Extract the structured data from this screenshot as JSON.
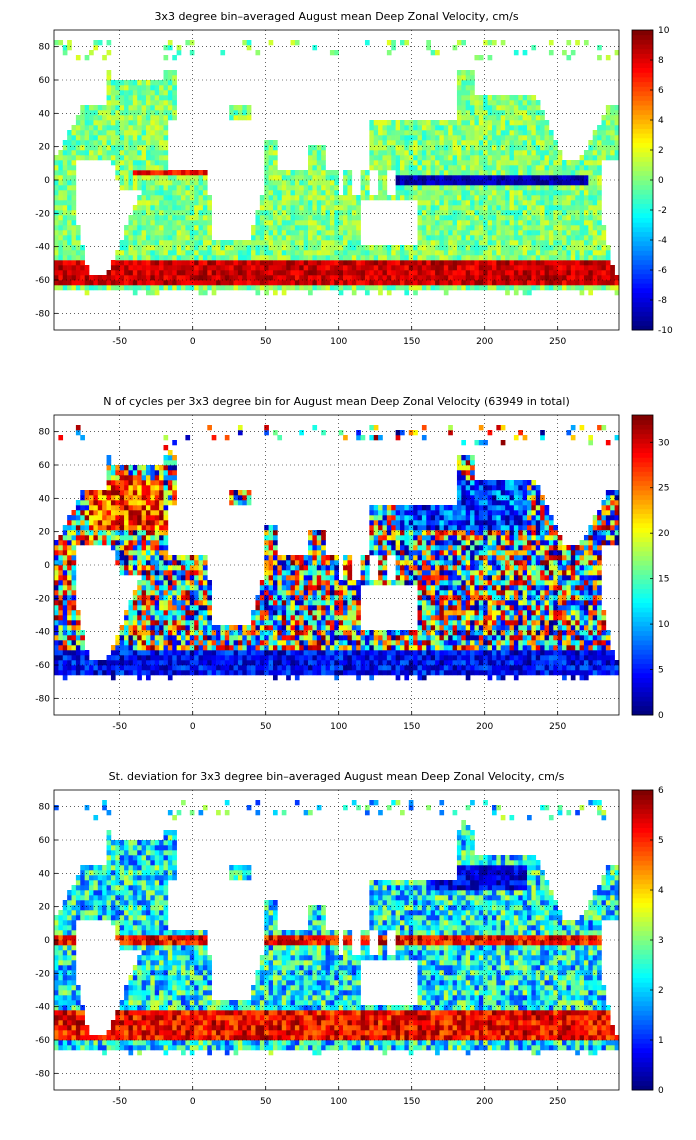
{
  "chart_data": [
    {
      "type": "heatmap",
      "title": "3x3 degree bin–averaged August mean Deep Zonal Velocity, cm/s",
      "xlabel": "",
      "ylabel": "",
      "xlim": [
        -95,
        292
      ],
      "ylim": [
        -90,
        90
      ],
      "x_ticks": [
        -50,
        0,
        50,
        100,
        150,
        200,
        250
      ],
      "y_ticks": [
        80,
        60,
        40,
        20,
        0,
        -20,
        -40,
        -60,
        -80
      ],
      "grid": true,
      "colorbar": {
        "range": [
          -10,
          10
        ],
        "ticks": [
          10,
          8,
          6,
          4,
          2,
          0,
          -2,
          -4,
          -6,
          -8,
          -10
        ],
        "colormap": "jet"
      },
      "description_values": {
        "background": 0,
        "acc_band_lat": -58,
        "acc_value": 9,
        "equatorial_jet_lat": 0,
        "equatorial_jet_value": -9
      }
    },
    {
      "type": "heatmap",
      "title": "N of cycles per 3x3 degree bin for August mean Deep Zonal Velocity (63949 in total)",
      "xlabel": "",
      "ylabel": "",
      "xlim": [
        -95,
        292
      ],
      "ylim": [
        -90,
        90
      ],
      "x_ticks": [
        -50,
        0,
        50,
        100,
        150,
        200,
        250
      ],
      "y_ticks": [
        80,
        60,
        40,
        20,
        0,
        -20,
        -40,
        -60,
        -80
      ],
      "grid": true,
      "colorbar": {
        "range": [
          0,
          33
        ],
        "ticks": [
          30,
          25,
          20,
          15,
          10,
          5,
          0
        ],
        "colormap": "jet"
      },
      "description_values": {
        "total_cycles": 63949
      }
    },
    {
      "type": "heatmap",
      "title": "St. deviation for 3x3 degree bin–averaged August mean Deep Zonal Velocity, cm/s",
      "xlabel": "",
      "ylabel": "",
      "xlim": [
        -95,
        292
      ],
      "ylim": [
        -90,
        90
      ],
      "x_ticks": [
        -50,
        0,
        50,
        100,
        150,
        200,
        250
      ],
      "y_ticks": [
        80,
        60,
        40,
        20,
        0,
        -20,
        -40,
        -60,
        -80
      ],
      "grid": true,
      "colorbar": {
        "range": [
          0,
          6
        ],
        "ticks": [
          6,
          5,
          4,
          3,
          2,
          1,
          0
        ],
        "colormap": "jet"
      }
    }
  ],
  "colors": {
    "ocean_background": "#ffffff",
    "coastline": "#000000",
    "axis": "#000000"
  }
}
